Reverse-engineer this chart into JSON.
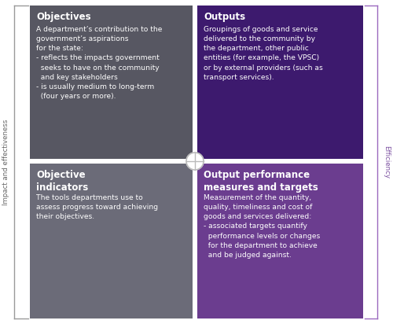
{
  "quadrants": [
    {
      "title": "Objectives",
      "body_lines": [
        "A department’s contribution to the",
        "government’s aspirations",
        "for the state:",
        "- reflects the impacts government",
        "  seeks to have on the community",
        "  and key stakeholders",
        "- is usually medium to long-term",
        "  (four years or more)."
      ],
      "color": "#575762",
      "text_color": "#ffffff",
      "position": "top-left"
    },
    {
      "title": "Outputs",
      "body_lines": [
        "Groupings of goods and service",
        "delivered to the community by",
        "the department, other public",
        "entities (for example, the VPSC)",
        "or by external providers (such as",
        "transport services)."
      ],
      "color": "#3d1a6e",
      "text_color": "#ffffff",
      "position": "top-right"
    },
    {
      "title": "Objective\nindicators",
      "body_lines": [
        "The tools departments use to",
        "assess progress toward achieving",
        "their objectives."
      ],
      "color": "#6b6b78",
      "text_color": "#ffffff",
      "position": "bottom-left"
    },
    {
      "title": "Output performance\nmeasures and targets",
      "body_lines": [
        "Measurement of the quantity,",
        "quality, timeliness and cost of",
        "goods and services delivered:",
        "- associated targets quantify",
        "  performance levels or changes",
        "  for the department to achieve",
        "  and be judged against."
      ],
      "color": "#6b3d8f",
      "text_color": "#ffffff",
      "position": "bottom-right"
    }
  ],
  "left_label": "Impact and effectiveness",
  "right_label": "Efficiency",
  "left_label_color": "#666666",
  "right_label_color": "#7b4fa0",
  "bg_color": "#ffffff",
  "left_bracket_color": "#999999",
  "right_bracket_color": "#9b6abf"
}
